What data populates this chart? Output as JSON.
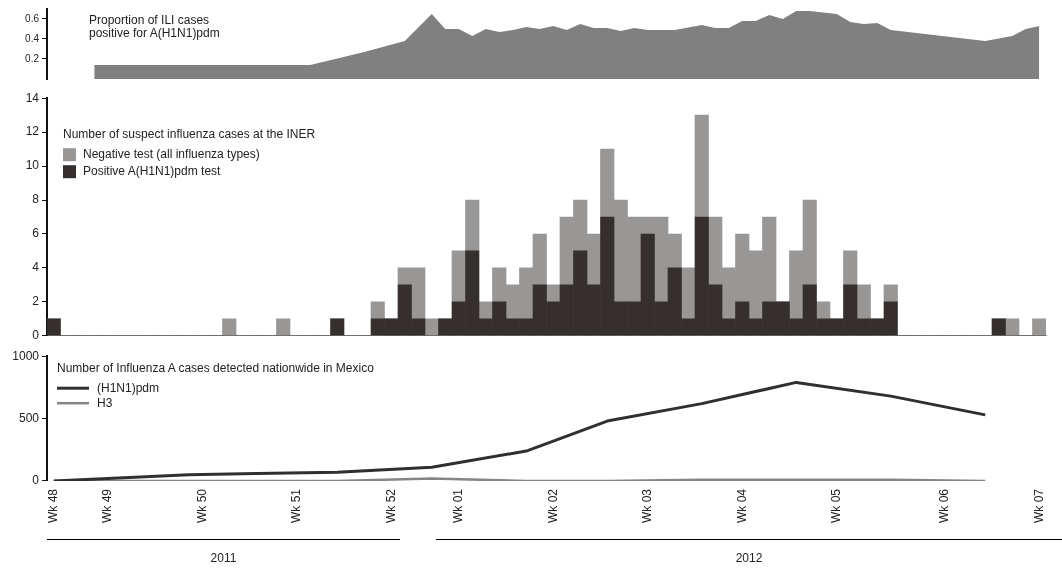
{
  "chart_data": [
    {
      "type": "area",
      "title": "Proportion of ILI cases positive for A(H1N1)pdm",
      "ylim": [
        0,
        0.7
      ],
      "yticks": [
        0.2,
        0.4,
        0.6
      ],
      "categories": [
        null,
        null,
        null,
        null,
        null,
        null,
        null,
        null,
        null,
        null,
        null,
        null,
        null,
        null,
        null,
        null,
        null,
        null,
        null,
        null,
        null,
        null,
        null,
        null,
        null,
        null,
        null,
        null,
        null,
        null,
        null,
        null,
        null,
        null,
        null,
        null,
        null,
        null,
        null,
        null,
        null,
        null,
        null,
        null,
        null,
        null,
        null,
        null,
        null,
        null,
        null,
        null,
        null,
        null,
        null,
        null,
        null,
        null,
        null,
        null,
        null,
        null,
        null,
        null,
        null,
        null,
        null,
        null,
        null,
        null,
        null,
        null,
        null,
        null
      ],
      "series": [
        {
          "color": "#808080",
          "values": [
            null,
            null,
            null,
            0.14,
            null,
            null,
            null,
            null,
            null,
            null,
            null,
            null,
            null,
            null,
            null,
            null,
            null,
            null,
            null,
            0.14,
            null,
            null,
            null,
            0.27,
            null,
            null,
            0.38,
            null,
            0.65,
            0.5,
            0.5,
            0.43,
            0.5,
            0.47,
            0.49,
            0.52,
            0.5,
            0.53,
            0.49,
            0.55,
            0.51,
            0.51,
            0.48,
            0.51,
            0.49,
            null,
            0.49,
            null,
            0.54,
            0.51,
            0.51,
            0.58,
            0.58,
            0.64,
            0.6,
            0.68,
            0.68,
            null,
            0.65,
            0.57,
            0.55,
            0.56,
            0.49,
            null,
            null,
            null,
            null,
            null,
            null,
            0.38,
            null,
            0.43,
            0.5,
            0.53
          ]
        }
      ]
    },
    {
      "type": "bar",
      "stacked": true,
      "legend_title": "Number of suspect influenza cases at the INER",
      "legend": "top left",
      "ylim": [
        0,
        14
      ],
      "yticks": [
        0,
        2,
        4,
        6,
        8,
        10,
        12,
        14
      ],
      "categories": [
        null,
        null,
        null,
        null,
        null,
        null,
        null,
        null,
        null,
        null,
        null,
        null,
        null,
        null,
        null,
        null,
        null,
        null,
        null,
        null,
        null,
        null,
        null,
        null,
        null,
        null,
        null,
        null,
        null,
        null,
        null,
        null,
        null,
        null,
        null,
        null,
        null,
        null,
        null,
        null,
        null,
        null,
        null,
        null,
        null,
        null,
        null,
        null,
        null,
        null,
        null,
        null,
        null,
        null,
        null,
        null,
        null,
        null,
        null,
        null,
        null,
        null,
        null,
        null,
        null,
        null,
        null,
        null,
        null,
        null,
        null,
        null,
        null,
        null
      ],
      "series": [
        {
          "name": "Positive A(H1N1)pdm test",
          "color": "#35302e",
          "values": [
            1,
            0,
            0,
            0,
            0,
            0,
            0,
            0,
            0,
            0,
            0,
            0,
            0,
            0,
            0,
            0,
            0,
            0,
            0,
            0,
            0,
            1,
            0,
            0,
            1,
            1,
            3,
            1,
            0,
            1,
            2,
            5,
            1,
            2,
            1,
            1,
            3,
            2,
            3,
            5,
            3,
            7,
            2,
            2,
            6,
            2,
            4,
            1,
            7,
            3,
            1,
            2,
            1,
            2,
            2,
            1,
            3,
            1,
            1,
            3,
            1,
            1,
            2,
            0,
            0,
            0,
            0,
            0,
            0,
            0,
            1,
            0,
            0,
            0
          ]
        },
        {
          "name": "Negative test (all influenza types)",
          "color": "#999696",
          "values": [
            0,
            0,
            0,
            0,
            0,
            0,
            0,
            0,
            0,
            0,
            0,
            0,
            0,
            1,
            0,
            0,
            0,
            1,
            0,
            0,
            0,
            0,
            0,
            0,
            1,
            0,
            1,
            3,
            1,
            0,
            3,
            3,
            1,
            2,
            2,
            3,
            3,
            1,
            4,
            3,
            3,
            4,
            6,
            5,
            1,
            5,
            2,
            3,
            6,
            4,
            3,
            4,
            4,
            5,
            0,
            4,
            5,
            1,
            0,
            2,
            2,
            0,
            1,
            0,
            0,
            0,
            0,
            0,
            0,
            0,
            0,
            1,
            0,
            1
          ]
        }
      ]
    },
    {
      "type": "line",
      "legend_title": "Number of Influenza A cases detected nationwide in Mexico",
      "legend": "top left",
      "ylim": [
        0,
        1000
      ],
      "yticks": [
        0,
        500,
        1000
      ],
      "categories": [
        "Wk 48",
        null,
        null,
        null,
        "Wk 49",
        null,
        null,
        null,
        null,
        null,
        null,
        "Wk 50",
        null,
        null,
        null,
        null,
        null,
        null,
        "Wk 51",
        null,
        null,
        null,
        null,
        null,
        null,
        "Wk 52",
        null,
        null,
        null,
        null,
        "Wk 01",
        null,
        null,
        null,
        null,
        null,
        null,
        "Wk 02",
        null,
        null,
        null,
        null,
        null,
        null,
        "Wk 03",
        null,
        null,
        null,
        null,
        null,
        null,
        "Wk 04",
        null,
        null,
        null,
        null,
        null,
        null,
        "Wk 05",
        null,
        null,
        null,
        null,
        null,
        null,
        null,
        "Wk 06",
        null,
        null,
        null,
        null,
        null,
        null,
        "Wk 07"
      ],
      "series": [
        {
          "name": "(H1N1)pdm",
          "color": "#2f2f2f",
          "values": [
            0,
            null,
            null,
            null,
            null,
            null,
            null,
            null,
            null,
            null,
            50,
            null,
            null,
            null,
            null,
            60,
            null,
            null,
            null,
            null,
            null,
            70,
            null,
            null,
            null,
            null,
            null,
            null,
            110,
            null,
            null,
            null,
            null,
            null,
            null,
            240,
            null,
            null,
            null,
            null,
            null,
            480,
            null,
            null,
            null,
            null,
            null,
            null,
            620,
            null,
            null,
            null,
            null,
            null,
            null,
            790,
            null,
            null,
            null,
            null,
            null,
            null,
            680,
            null,
            null,
            null,
            null,
            null,
            null,
            530,
            null,
            null,
            null,
            null
          ]
        },
        {
          "name": "H3",
          "color": "#858585",
          "values": [
            0,
            null,
            null,
            null,
            null,
            null,
            null,
            null,
            null,
            null,
            0,
            null,
            null,
            null,
            null,
            0,
            null,
            null,
            null,
            null,
            null,
            0,
            null,
            null,
            null,
            null,
            null,
            null,
            20,
            null,
            null,
            null,
            null,
            null,
            null,
            0,
            null,
            null,
            null,
            null,
            null,
            0,
            null,
            null,
            null,
            null,
            null,
            null,
            10,
            null,
            null,
            null,
            null,
            null,
            null,
            10,
            null,
            null,
            null,
            null,
            null,
            null,
            10,
            null,
            null,
            null,
            null,
            null,
            null,
            0,
            null,
            null,
            null,
            null
          ]
        }
      ],
      "annotations": [
        "2011",
        "2012"
      ]
    }
  ]
}
